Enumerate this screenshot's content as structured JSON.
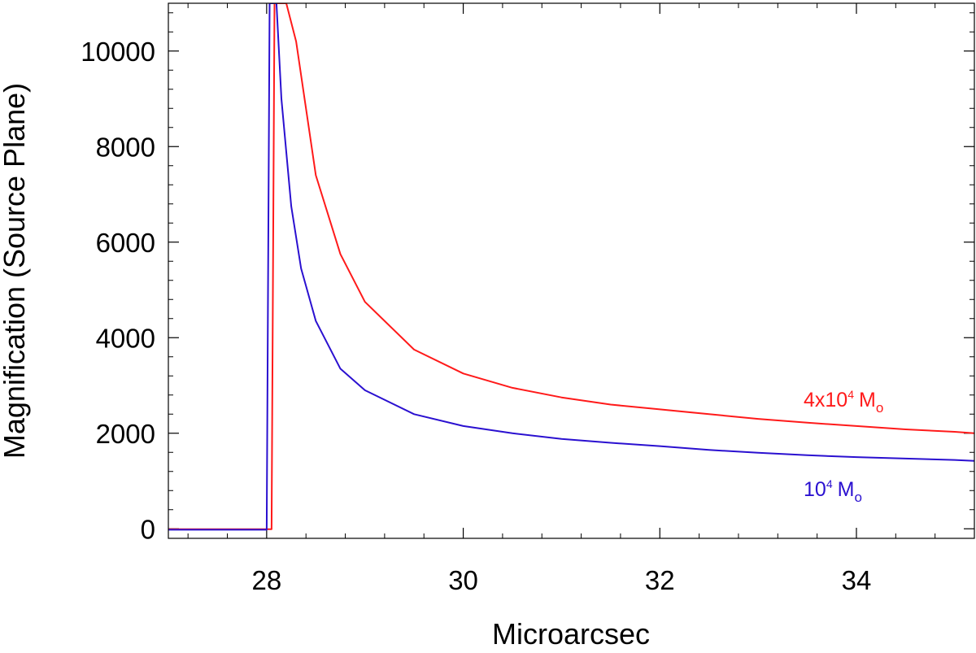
{
  "chart_data": {
    "type": "line",
    "title": "",
    "xlabel": "Microarcsec",
    "ylabel": "Magnification (Source Plane)",
    "xlim": [
      27.0,
      35.2
    ],
    "ylim": [
      -200,
      11000
    ],
    "x_ticks": [
      28,
      30,
      32,
      34
    ],
    "y_ticks": [
      0,
      2000,
      4000,
      6000,
      8000,
      10000
    ],
    "x_minor_step": 0.4,
    "y_minor_step": 400,
    "grid": false,
    "legend": "none",
    "series": [
      {
        "name": "4x10⁴ Mₒ",
        "label_parts": {
          "base": "4x10",
          "exp": "4",
          "unit": "M",
          "sub": "o"
        },
        "color": "#ff1a1a",
        "x": [
          27.0,
          28.05,
          28.08,
          28.2,
          28.3,
          28.5,
          28.75,
          29.0,
          29.5,
          30.0,
          30.5,
          31.0,
          31.5,
          32.0,
          32.5,
          33.0,
          33.5,
          34.0,
          34.5,
          35.0,
          35.2
        ],
        "y": [
          -10,
          -10,
          11000,
          11000,
          10200,
          7400,
          5750,
          4750,
          3750,
          3250,
          2950,
          2750,
          2600,
          2500,
          2400,
          2300,
          2220,
          2150,
          2080,
          2030,
          2000
        ]
      },
      {
        "name": "10⁴ Mₒ",
        "label_parts": {
          "base": "10",
          "exp": "4",
          "unit": "M",
          "sub": "o"
        },
        "color": "#2a10d0",
        "x": [
          27.0,
          28.0,
          28.03,
          28.1,
          28.15,
          28.25,
          28.35,
          28.5,
          28.75,
          29.0,
          29.5,
          30.0,
          30.5,
          31.0,
          31.5,
          32.0,
          32.5,
          33.0,
          33.5,
          34.0,
          34.5,
          35.0,
          35.2
        ],
        "y": [
          -20,
          -20,
          11000,
          11000,
          9000,
          6750,
          5450,
          4350,
          3350,
          2900,
          2400,
          2150,
          2000,
          1880,
          1800,
          1730,
          1650,
          1590,
          1540,
          1500,
          1470,
          1440,
          1420
        ]
      }
    ]
  }
}
